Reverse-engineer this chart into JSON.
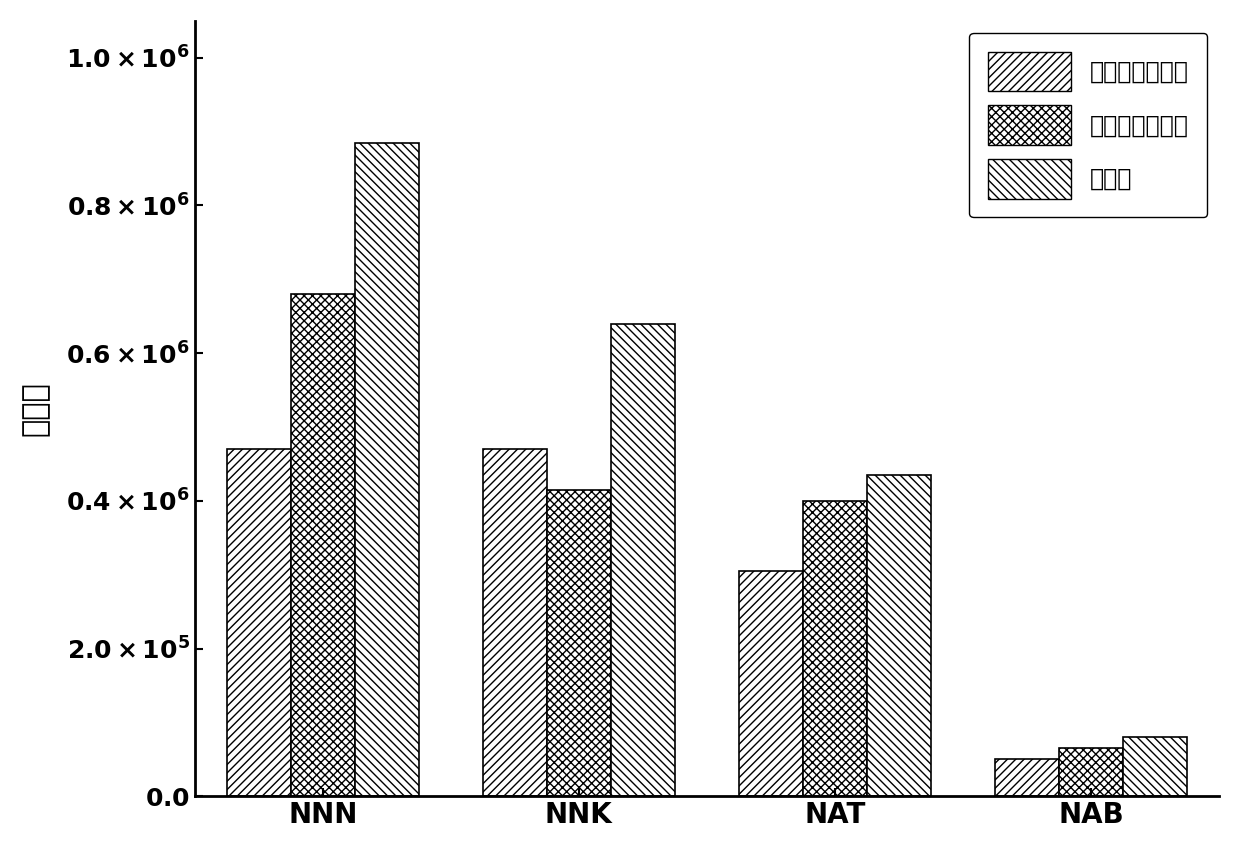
{
  "categories": [
    "NNN",
    "NNK",
    "NAT",
    "NAB"
  ],
  "series": {
    "氨基修饰石墨烯": [
      470000,
      470000,
      305000,
      50000
    ],
    "羧酸修饰石墨烯": [
      680000,
      415000,
      400000,
      65000
    ],
    "石墨烯": [
      885000,
      640000,
      435000,
      80000
    ]
  },
  "ylabel": "峰面积",
  "ylim": [
    0,
    1050000
  ],
  "yticks": [
    0,
    200000,
    400000,
    600000,
    800000,
    1000000
  ],
  "hatch_patterns": [
    "////",
    "xxxx",
    "\\\\\\\\"
  ],
  "legend_labels": [
    "氨基修饰石墨烯",
    "羧酸修饰石墨烯",
    "石墨烯"
  ],
  "bar_width": 0.25,
  "background_color": "#ffffff",
  "bar_facecolor": "white",
  "bar_edgecolor": "black",
  "label_fontsize": 22,
  "tick_fontsize": 18,
  "legend_fontsize": 17,
  "spine_linewidth": 2.0,
  "bar_linewidth": 1.2
}
